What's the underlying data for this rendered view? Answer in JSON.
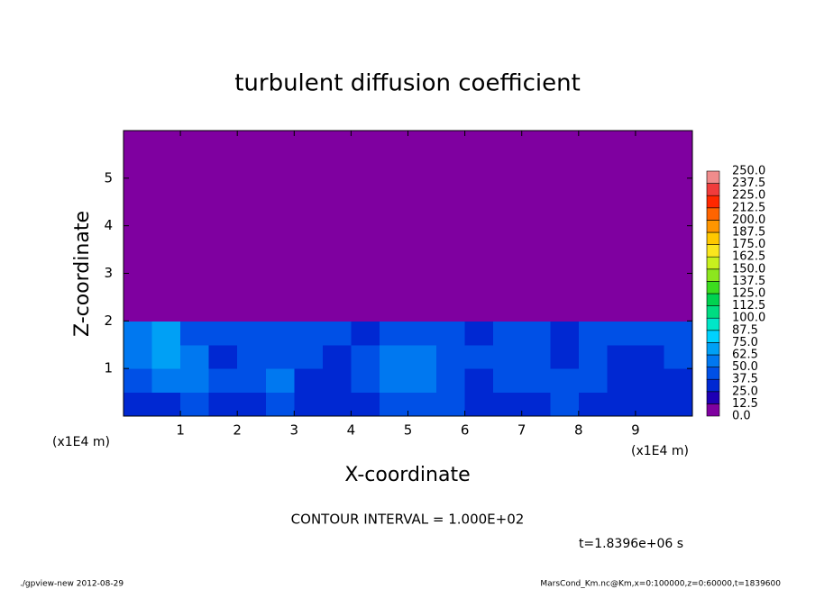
{
  "chart_data": {
    "type": "heatmap",
    "title": "turbulent diffusion coefficient",
    "xlabel": "X-coordinate",
    "ylabel": "Z-coordinate",
    "x_unit": "(x1E4 m)",
    "y_unit": "(x1E4 m)",
    "xlim": [
      0,
      10
    ],
    "ylim": [
      0,
      6
    ],
    "xticks": [
      1,
      2,
      3,
      4,
      5,
      6,
      7,
      8,
      9
    ],
    "yticks": [
      1,
      2,
      3,
      4,
      5
    ],
    "values": [
      [
        30,
        35,
        40,
        30,
        35,
        45,
        30,
        28,
        35,
        40,
        45,
        38,
        30,
        32,
        35,
        40,
        35,
        30,
        28,
        32
      ],
      [
        45,
        55,
        60,
        40,
        38,
        50,
        35,
        32,
        40,
        55,
        60,
        45,
        35,
        40,
        45,
        38,
        42,
        35,
        30,
        35
      ],
      [
        60,
        65,
        50,
        35,
        40,
        45,
        38,
        30,
        45,
        50,
        55,
        40,
        38,
        42,
        40,
        35,
        38,
        32,
        35,
        40
      ],
      [
        55,
        70,
        45,
        40,
        42,
        38,
        40,
        45,
        35,
        42,
        40,
        38,
        35,
        40,
        38,
        36,
        40,
        38,
        42,
        45
      ],
      [
        0,
        0,
        0,
        0,
        0,
        0,
        0,
        0,
        0,
        0,
        0,
        0,
        0,
        0,
        0,
        0,
        0,
        0,
        0,
        0
      ],
      [
        0,
        0,
        0,
        0,
        0,
        0,
        0,
        0,
        0,
        0,
        0,
        0,
        0,
        0,
        0,
        0,
        0,
        0,
        0,
        0
      ],
      [
        0,
        0,
        0,
        0,
        0,
        0,
        0,
        0,
        0,
        0,
        0,
        0,
        0,
        0,
        0,
        0,
        0,
        0,
        0,
        0
      ],
      [
        0,
        0,
        0,
        0,
        0,
        0,
        0,
        0,
        0,
        0,
        0,
        0,
        0,
        0,
        0,
        0,
        0,
        0,
        0,
        0
      ],
      [
        0,
        0,
        0,
        0,
        0,
        0,
        0,
        0,
        0,
        0,
        0,
        0,
        0,
        0,
        0,
        0,
        0,
        0,
        0,
        0
      ],
      [
        0,
        0,
        0,
        0,
        0,
        0,
        0,
        0,
        0,
        0,
        0,
        0,
        0,
        0,
        0,
        0,
        0,
        0,
        0,
        0
      ],
      [
        0,
        0,
        0,
        0,
        0,
        0,
        0,
        0,
        0,
        0,
        0,
        0,
        0,
        0,
        0,
        0,
        0,
        0,
        0,
        0
      ],
      [
        0,
        0,
        0,
        0,
        0,
        0,
        0,
        0,
        0,
        0,
        0,
        0,
        0,
        0,
        0,
        0,
        0,
        0,
        0,
        0
      ]
    ],
    "levels": [
      {
        "value": 0,
        "label": "0.0"
      },
      {
        "value": 12.5,
        "label": "12.5"
      },
      {
        "value": 25,
        "label": "25.0"
      },
      {
        "value": 37.5,
        "label": "37.5"
      },
      {
        "value": 50,
        "label": "50.0"
      },
      {
        "value": 62.5,
        "label": "62.5"
      },
      {
        "value": 75,
        "label": "75.0"
      },
      {
        "value": 87.5,
        "label": "87.5"
      },
      {
        "value": 100,
        "label": "100.0"
      },
      {
        "value": 112.5,
        "label": "112.5"
      },
      {
        "value": 125,
        "label": "125.0"
      },
      {
        "value": 137.5,
        "label": "137.5"
      },
      {
        "value": 150,
        "label": "150.0"
      },
      {
        "value": 162.5,
        "label": "162.5"
      },
      {
        "value": 175,
        "label": "175.0"
      },
      {
        "value": 187.5,
        "label": "187.5"
      },
      {
        "value": 200,
        "label": "200.0"
      },
      {
        "value": 212.5,
        "label": "212.5"
      },
      {
        "value": 225,
        "label": "225.0"
      },
      {
        "value": 237.5,
        "label": "237.5"
      },
      {
        "value": 250,
        "label": "250.0"
      }
    ],
    "colors": [
      "#7f00a0",
      "#1e00b4",
      "#0028d2",
      "#0050e6",
      "#0078f0",
      "#00a0f5",
      "#00d2ff",
      "#00e6c8",
      "#00dc82",
      "#00d250",
      "#3cdc1e",
      "#8ce61e",
      "#c8f01e",
      "#fae61e",
      "#ffc800",
      "#ff9600",
      "#ff6400",
      "#ff2800",
      "#f03c3c",
      "#f08c8c"
    ],
    "annotation": "CONTOUR INTERVAL = 1.000E+02",
    "time_label": "t=1.8396e+06 s",
    "footer_left": "./gpview-new  2012-08-29",
    "footer_right": "MarsCond_Km.nc@Km,x=0:100000,z=0:60000,t=1839600"
  }
}
